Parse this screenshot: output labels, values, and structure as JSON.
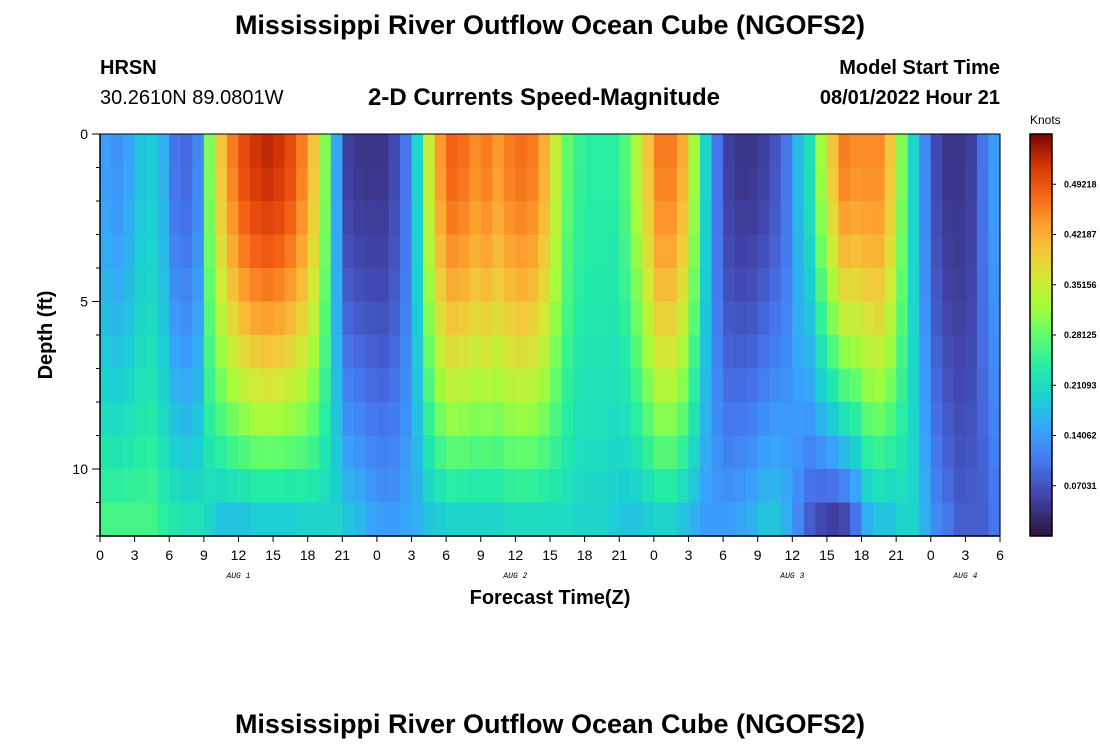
{
  "header": {
    "title": "Mississippi River Outflow Ocean Cube (NGOFS2)",
    "station_name": "HRSN",
    "station_coords": "30.2610N  89.0801W",
    "subtitle": "2-D Currents Speed-Magnitude",
    "model_start_label": "Model Start Time",
    "model_start_value": "08/01/2022 Hour 21"
  },
  "footer": {
    "title": "Mississippi River Outflow Ocean Cube (NGOFS2)"
  },
  "chart_data": {
    "type": "heatmap",
    "title": "2-D Currents Speed-Magnitude",
    "xlabel": "Forecast Time(Z)",
    "ylabel": "Depth (ft)",
    "x_tick_labels": [
      "0",
      "3",
      "6",
      "9",
      "12",
      "15",
      "18",
      "21",
      "0",
      "3",
      "6",
      "9",
      "12",
      "15",
      "18",
      "21",
      "0",
      "3",
      "6",
      "9",
      "12",
      "15",
      "18",
      "21",
      "0",
      "3",
      "6"
    ],
    "x_range_hours": [
      0,
      78
    ],
    "date_labels": [
      {
        "label": "AUG 1",
        "hour": 12
      },
      {
        "label": "AUG 2",
        "hour": 36
      },
      {
        "label": "AUG 3",
        "hour": 60
      },
      {
        "label": "AUG 4",
        "hour": 75
      }
    ],
    "y_tick_labels": [
      "0",
      "5",
      "10"
    ],
    "y_ticks_ft": [
      0,
      5,
      10
    ],
    "y_range_ft": [
      0,
      12
    ],
    "colorbar": {
      "unit": "Knots",
      "labels": [
        "0.49218",
        "0.42187",
        "0.35156",
        "0.28125",
        "0.21093",
        "0.14062",
        "0.07031"
      ],
      "values": [
        0.49218,
        0.42187,
        0.35156,
        0.28125,
        0.21093,
        0.14062,
        0.07031
      ],
      "range": [
        0,
        0.5625
      ]
    },
    "time_hours": [
      0,
      1,
      2,
      3,
      4,
      5,
      6,
      7,
      8,
      9,
      10,
      11,
      12,
      13,
      14,
      15,
      16,
      17,
      18,
      19,
      20,
      21,
      22,
      23,
      24,
      25,
      26,
      27,
      28,
      29,
      30,
      31,
      32,
      33,
      34,
      35,
      36,
      37,
      38,
      39,
      40,
      41,
      42,
      43,
      44,
      45,
      46,
      47,
      48,
      49,
      50,
      51,
      52,
      53,
      54,
      55,
      56,
      57,
      58,
      59,
      60,
      61,
      62,
      63,
      64,
      65,
      66,
      67,
      68,
      69,
      70,
      71,
      72,
      73,
      74,
      75,
      76,
      77
    ],
    "surface_speed_knots": [
      0.14,
      0.13,
      0.15,
      0.18,
      0.19,
      0.16,
      0.1,
      0.09,
      0.12,
      0.3,
      0.4,
      0.46,
      0.5,
      0.52,
      0.53,
      0.52,
      0.5,
      0.46,
      0.4,
      0.3,
      0.15,
      0.05,
      0.04,
      0.04,
      0.04,
      0.06,
      0.1,
      0.2,
      0.35,
      0.44,
      0.48,
      0.47,
      0.45,
      0.46,
      0.44,
      0.46,
      0.47,
      0.46,
      0.42,
      0.35,
      0.28,
      0.25,
      0.24,
      0.24,
      0.24,
      0.27,
      0.33,
      0.4,
      0.46,
      0.46,
      0.42,
      0.32,
      0.2,
      0.1,
      0.05,
      0.04,
      0.04,
      0.05,
      0.07,
      0.1,
      0.17,
      0.22,
      0.32,
      0.4,
      0.46,
      0.45,
      0.45,
      0.45,
      0.4,
      0.3,
      0.2,
      0.12,
      0.06,
      0.04,
      0.04,
      0.05,
      0.1,
      0.14
    ],
    "bottom_speed_knots": [
      0.26,
      0.26,
      0.26,
      0.26,
      0.26,
      0.24,
      0.23,
      0.22,
      0.22,
      0.2,
      0.18,
      0.18,
      0.18,
      0.19,
      0.19,
      0.19,
      0.19,
      0.2,
      0.2,
      0.2,
      0.2,
      0.18,
      0.17,
      0.15,
      0.14,
      0.14,
      0.15,
      0.16,
      0.18,
      0.19,
      0.2,
      0.2,
      0.2,
      0.2,
      0.2,
      0.21,
      0.21,
      0.21,
      0.21,
      0.21,
      0.21,
      0.2,
      0.2,
      0.2,
      0.19,
      0.18,
      0.18,
      0.19,
      0.2,
      0.2,
      0.18,
      0.16,
      0.14,
      0.14,
      0.14,
      0.15,
      0.16,
      0.18,
      0.18,
      0.16,
      0.12,
      0.08,
      0.06,
      0.05,
      0.06,
      0.1,
      0.16,
      0.18,
      0.18,
      0.2,
      0.2,
      0.16,
      0.12,
      0.1,
      0.08,
      0.08,
      0.08,
      0.1
    ]
  }
}
